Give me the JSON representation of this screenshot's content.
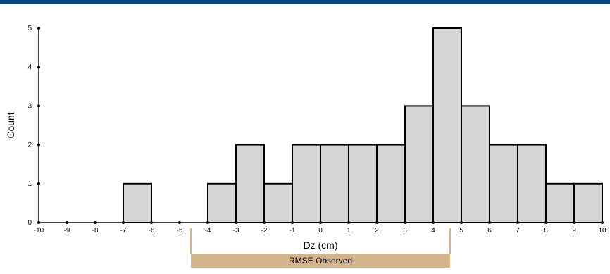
{
  "chart_data": {
    "type": "bar",
    "xlabel": "Dz (cm)",
    "ylabel": "Count",
    "xlim": [
      -10,
      10
    ],
    "ylim": [
      0,
      5
    ],
    "x_ticks": [
      -10,
      -9,
      -8,
      -7,
      -6,
      -5,
      -4,
      -3,
      -2,
      -1,
      0,
      1,
      2,
      3,
      4,
      5,
      6,
      7,
      8,
      9,
      10
    ],
    "y_ticks": [
      0,
      1,
      2,
      3,
      4,
      5
    ],
    "bins": [
      {
        "start": -7,
        "end": -6,
        "count": 1
      },
      {
        "start": -4,
        "end": -3,
        "count": 1
      },
      {
        "start": -3,
        "end": -2,
        "count": 2
      },
      {
        "start": -2,
        "end": -1,
        "count": 1
      },
      {
        "start": -1,
        "end": 0,
        "count": 2
      },
      {
        "start": 0,
        "end": 1,
        "count": 2
      },
      {
        "start": 1,
        "end": 2,
        "count": 2
      },
      {
        "start": 2,
        "end": 3,
        "count": 2
      },
      {
        "start": 3,
        "end": 4,
        "count": 3
      },
      {
        "start": 4,
        "end": 5,
        "count": 5
      },
      {
        "start": 5,
        "end": 6,
        "count": 3
      },
      {
        "start": 6,
        "end": 7,
        "count": 2
      },
      {
        "start": 7,
        "end": 8,
        "count": 2
      },
      {
        "start": 8,
        "end": 9,
        "count": 1
      },
      {
        "start": 9,
        "end": 10,
        "count": 1
      }
    ],
    "grid": false,
    "annotation": {
      "label": "RMSE Observed",
      "range": [
        -4.6,
        4.6
      ],
      "color": "#d4b48c"
    }
  }
}
